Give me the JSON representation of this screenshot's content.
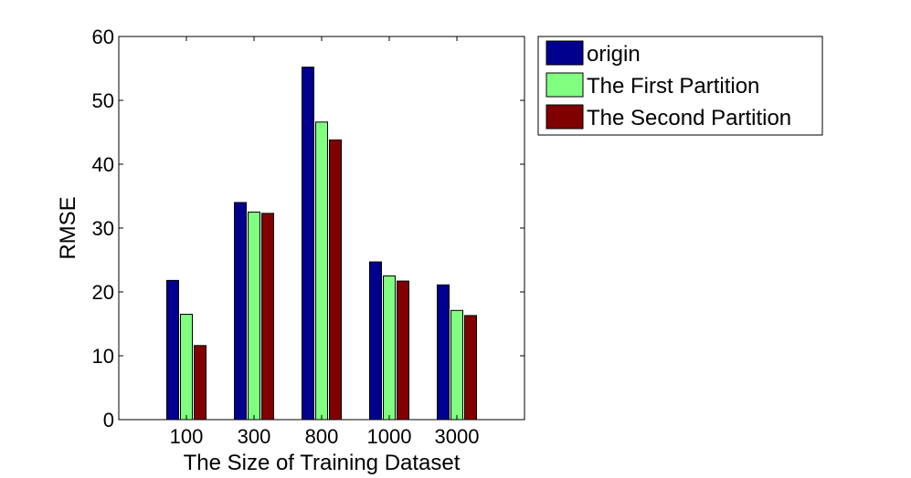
{
  "chart_data": {
    "type": "bar",
    "categories": [
      "100",
      "300",
      "800",
      "1000",
      "3000"
    ],
    "series": [
      {
        "name": "origin",
        "color": "#00008f",
        "values": [
          21.8,
          34.0,
          55.2,
          24.7,
          21.1
        ]
      },
      {
        "name": "The First Partition",
        "color": "#80ff80",
        "values": [
          16.5,
          32.5,
          46.6,
          22.5,
          17.1
        ]
      },
      {
        "name": "The Second Partition",
        "color": "#800000",
        "values": [
          11.6,
          32.3,
          43.8,
          21.7,
          16.3
        ]
      }
    ],
    "xlabel": "The Size of Training Dataset",
    "ylabel": "RMSE",
    "ylim": [
      0,
      60
    ],
    "yticks": [
      0,
      10,
      20,
      30,
      40,
      50,
      60
    ],
    "grid": false,
    "legend_position": "outside-top-right"
  }
}
